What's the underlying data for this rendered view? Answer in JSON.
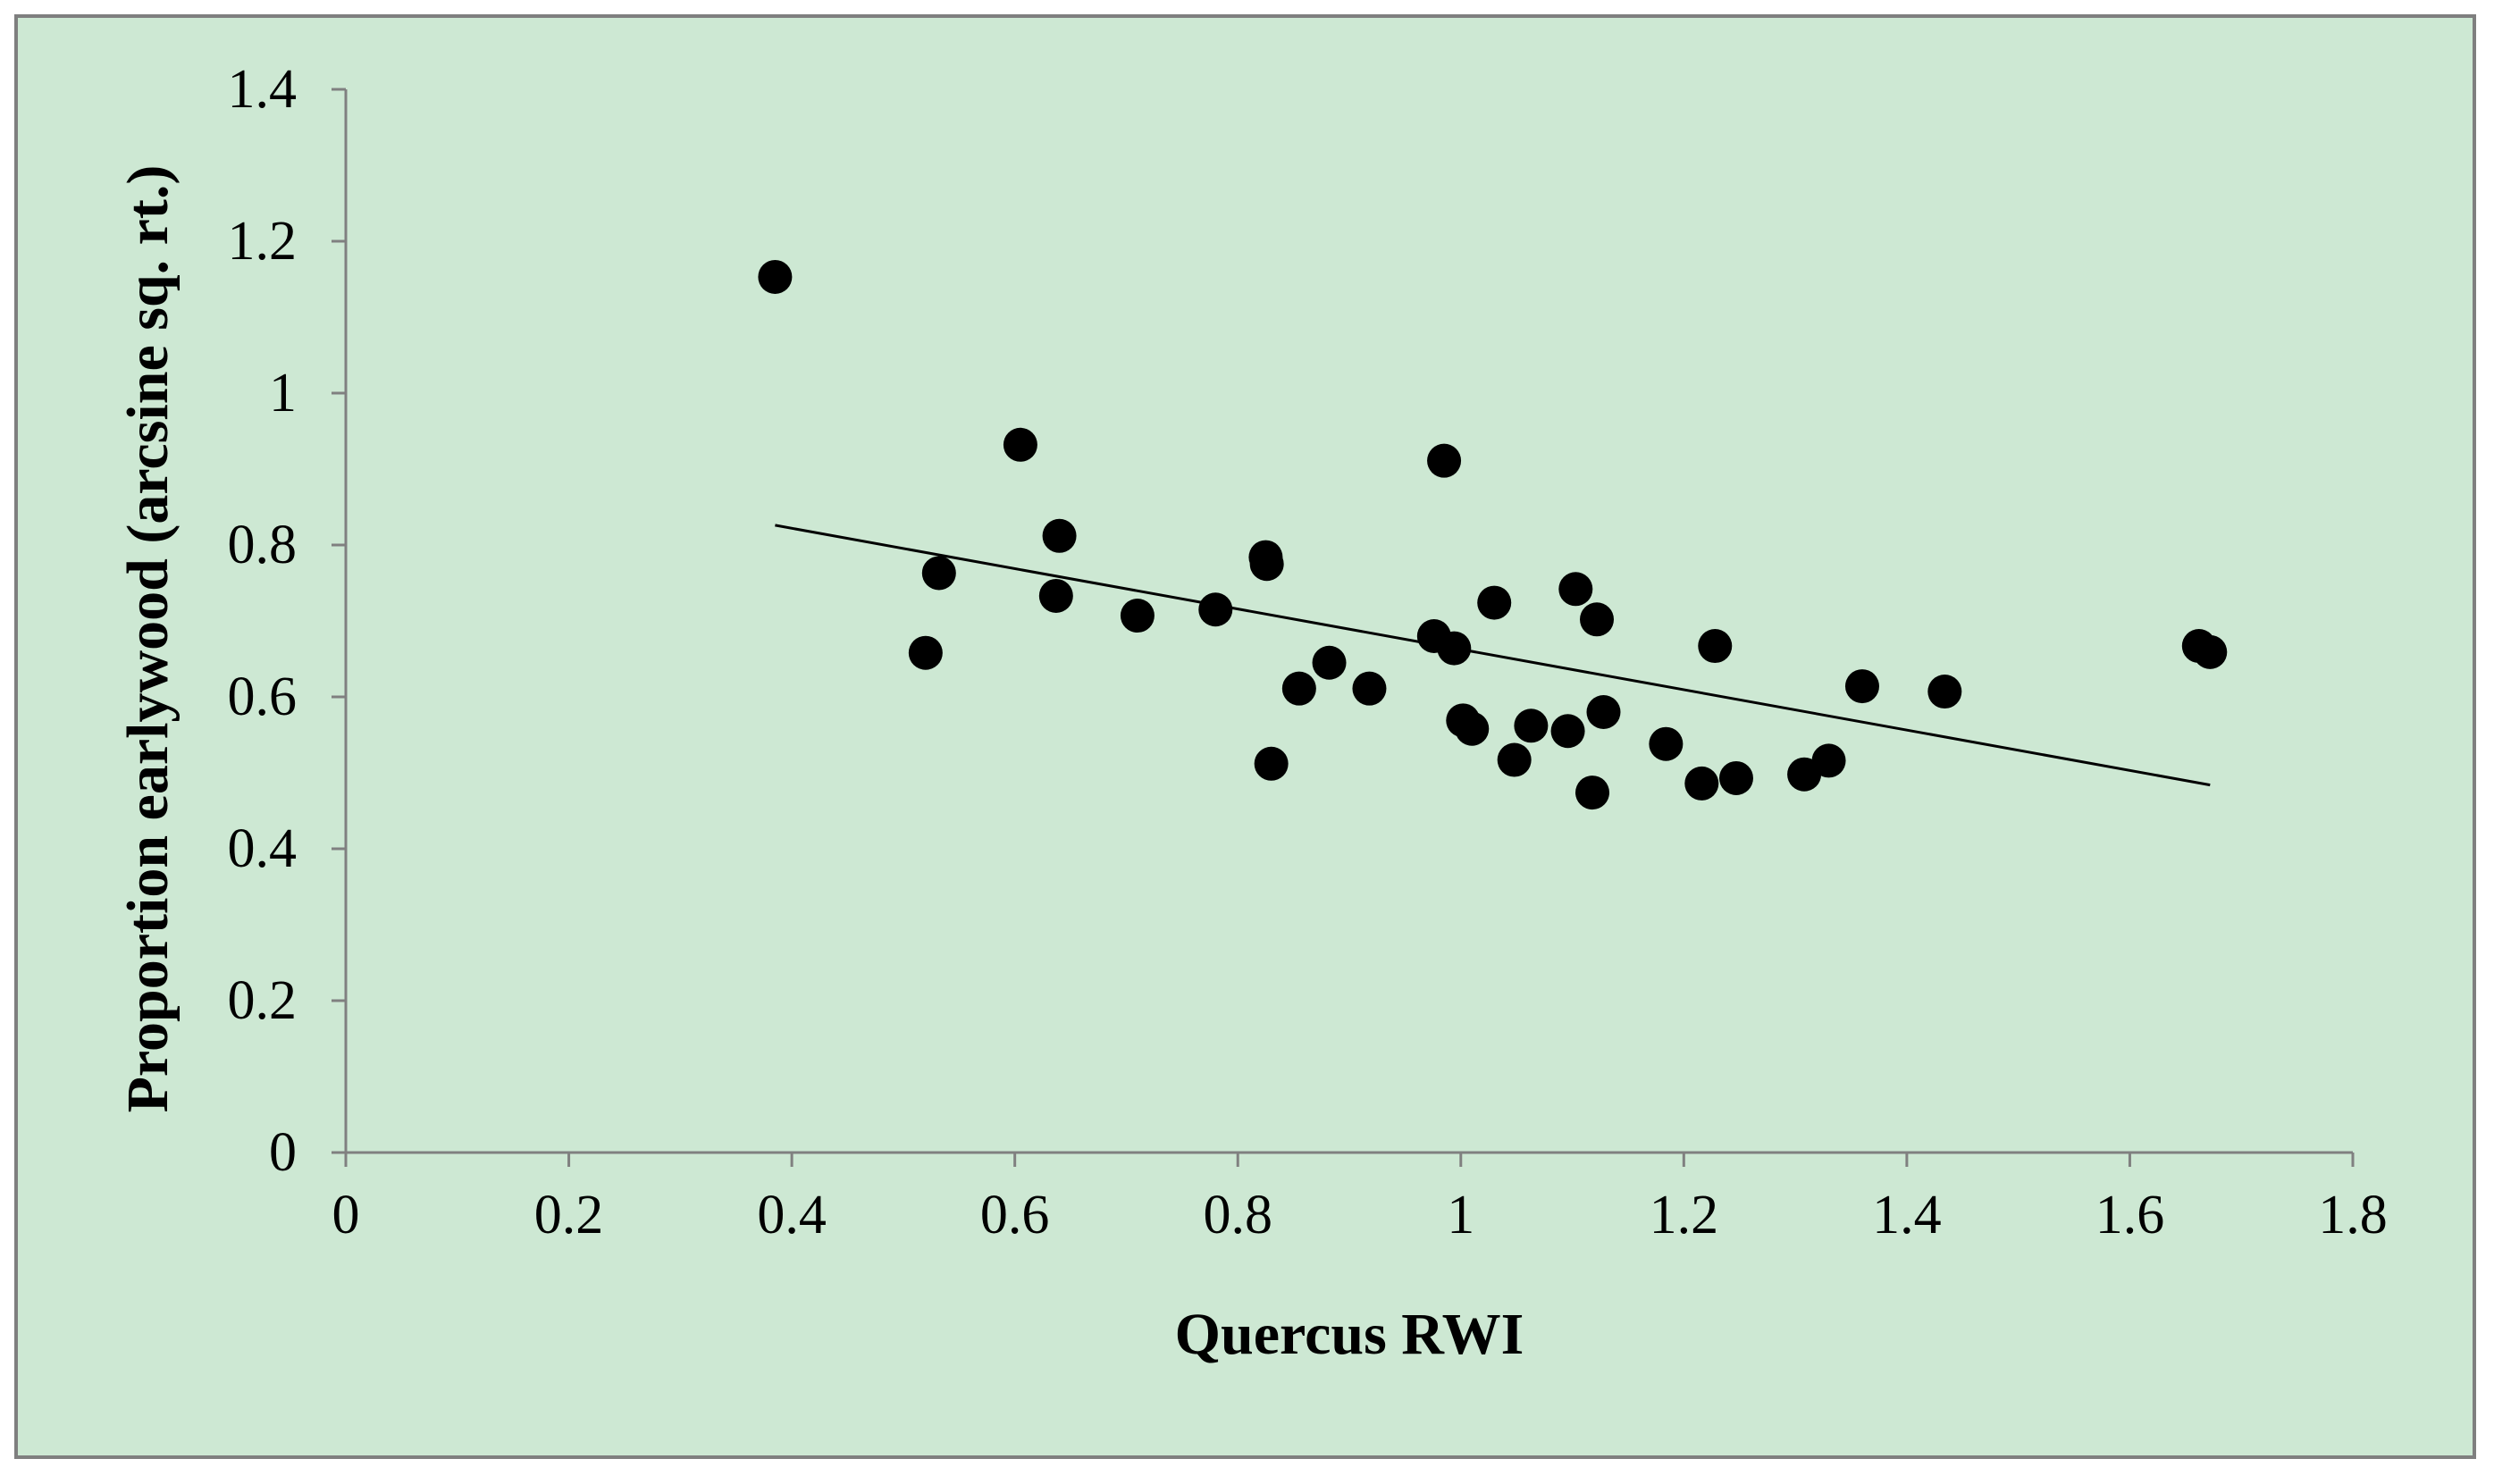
{
  "chart_data": {
    "type": "scatter",
    "xlabel": "Quercus RWI",
    "ylabel": "Proportion earlywood (arcsine sq. rt.)",
    "xlim": [
      0,
      1.8
    ],
    "ylim": [
      0,
      1.4
    ],
    "x_ticks": [
      0,
      0.2,
      0.4,
      0.6,
      0.8,
      1,
      1.2,
      1.4,
      1.6,
      1.8
    ],
    "x_tick_labels": [
      "0",
      "0.2",
      "0.4",
      "0.6",
      "0.8",
      "1",
      "1.2",
      "1.4",
      "1.6",
      "1.8"
    ],
    "y_ticks": [
      0,
      0.2,
      0.4,
      0.6,
      0.8,
      1,
      1.2,
      1.4
    ],
    "y_tick_labels": [
      "0",
      "0.2",
      "0.4",
      "0.6",
      "0.8",
      "1",
      "1.2",
      "1.4"
    ],
    "grid": false,
    "legend": false,
    "points": [
      {
        "x": 0.385,
        "y": 1.153
      },
      {
        "x": 0.52,
        "y": 0.658
      },
      {
        "x": 0.532,
        "y": 0.763
      },
      {
        "x": 0.605,
        "y": 0.932
      },
      {
        "x": 0.637,
        "y": 0.733
      },
      {
        "x": 0.64,
        "y": 0.812
      },
      {
        "x": 0.71,
        "y": 0.707
      },
      {
        "x": 0.78,
        "y": 0.715
      },
      {
        "x": 0.825,
        "y": 0.784
      },
      {
        "x": 0.826,
        "y": 0.775
      },
      {
        "x": 0.83,
        "y": 0.512
      },
      {
        "x": 0.855,
        "y": 0.611
      },
      {
        "x": 0.882,
        "y": 0.645
      },
      {
        "x": 0.918,
        "y": 0.611
      },
      {
        "x": 0.976,
        "y": 0.68
      },
      {
        "x": 0.985,
        "y": 0.911
      },
      {
        "x": 0.994,
        "y": 0.664
      },
      {
        "x": 1.002,
        "y": 0.569
      },
      {
        "x": 1.01,
        "y": 0.558
      },
      {
        "x": 1.03,
        "y": 0.724
      },
      {
        "x": 1.048,
        "y": 0.517
      },
      {
        "x": 1.063,
        "y": 0.562
      },
      {
        "x": 1.096,
        "y": 0.555
      },
      {
        "x": 1.103,
        "y": 0.742
      },
      {
        "x": 1.118,
        "y": 0.474
      },
      {
        "x": 1.122,
        "y": 0.702
      },
      {
        "x": 1.128,
        "y": 0.58
      },
      {
        "x": 1.184,
        "y": 0.538
      },
      {
        "x": 1.216,
        "y": 0.486
      },
      {
        "x": 1.228,
        "y": 0.667
      },
      {
        "x": 1.247,
        "y": 0.493
      },
      {
        "x": 1.308,
        "y": 0.498
      },
      {
        "x": 1.33,
        "y": 0.516
      },
      {
        "x": 1.36,
        "y": 0.614
      },
      {
        "x": 1.434,
        "y": 0.607
      },
      {
        "x": 1.662,
        "y": 0.667
      },
      {
        "x": 1.672,
        "y": 0.659
      }
    ],
    "trendline": {
      "x": [
        0.385,
        1.672
      ],
      "y": [
        0.826,
        0.484
      ]
    },
    "colors": {
      "background": "#cde8d3",
      "border": "#7f7f7f",
      "marker": "#000000",
      "line": "#000000"
    }
  }
}
